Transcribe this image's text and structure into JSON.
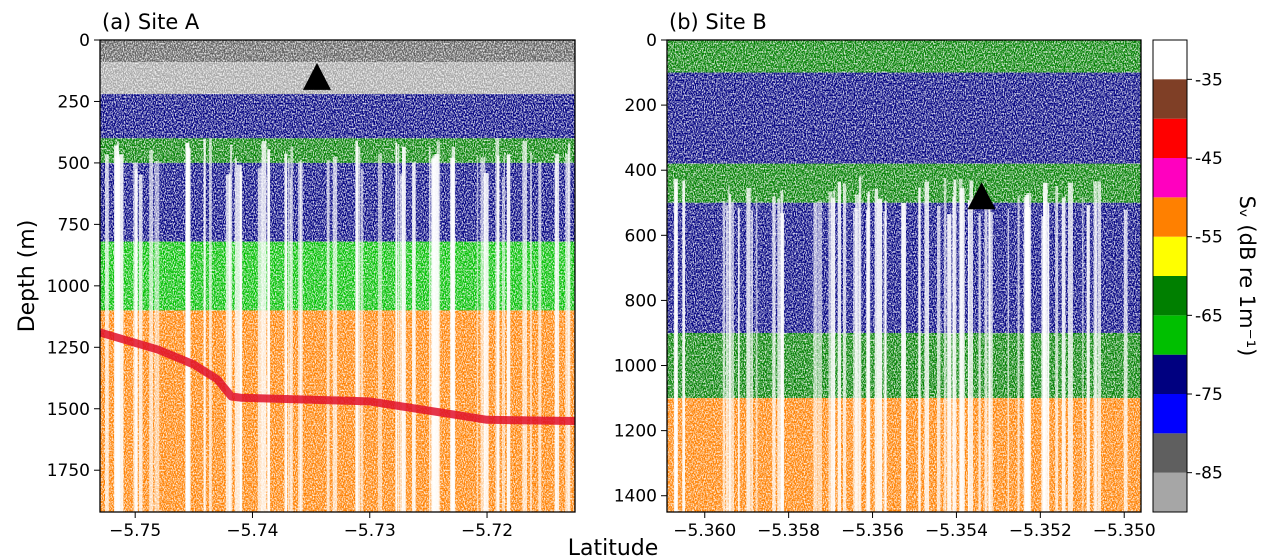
{
  "chart_data": [
    {
      "type": "heatmap",
      "panel": "(a) Site A",
      "title": "(a) Site A",
      "ylabel": "Depth (m)",
      "xlabel": "Latitude",
      "y_inverted": true,
      "xlim": [
        -5.753,
        -5.7125
      ],
      "ylim": [
        0,
        1920
      ],
      "xticks": [
        -5.75,
        -5.74,
        -5.73,
        -5.72
      ],
      "xtick_labels": [
        "−5.75",
        "−5.74",
        "−5.73",
        "−5.72"
      ],
      "yticks": [
        0,
        250,
        500,
        750,
        1000,
        1250,
        1500,
        1750
      ],
      "ytick_labels": [
        "0",
        "250",
        "500",
        "750",
        "1000",
        "1250",
        "1500",
        "1750"
      ],
      "marker": {
        "shape": "triangle",
        "lat": -5.7345,
        "depth": 150
      },
      "bottom_echo": {
        "lat": [
          -5.753,
          -5.748,
          -5.745,
          -5.743,
          -5.7418,
          -5.741,
          -5.73,
          -5.722,
          -5.72,
          -5.7125
        ],
        "depth": [
          1190,
          1260,
          1320,
          1380,
          1450,
          1455,
          1470,
          1530,
          1545,
          1550
        ]
      },
      "layers": [
        {
          "depth": [
            0,
            90
          ],
          "sv": -82
        },
        {
          "depth": [
            90,
            220
          ],
          "sv": -88
        },
        {
          "depth": [
            220,
            400
          ],
          "sv": -72
        },
        {
          "depth": [
            400,
            500
          ],
          "sv": -65
        },
        {
          "depth": [
            500,
            820
          ],
          "sv": -72
        },
        {
          "depth": [
            820,
            1100
          ],
          "sv": -66
        },
        {
          "depth": [
            1100,
            1920
          ],
          "sv": -55
        }
      ]
    },
    {
      "type": "heatmap",
      "panel": "(b) Site B",
      "title": "(b) Site B",
      "ylabel": "",
      "xlabel": "Latitude",
      "y_inverted": true,
      "xlim": [
        -5.3609,
        -5.3496
      ],
      "ylim": [
        0,
        1450
      ],
      "xticks": [
        -5.36,
        -5.358,
        -5.356,
        -5.354,
        -5.352,
        -5.35
      ],
      "xtick_labels": [
        "−5.360",
        "−5.358",
        "−5.356",
        "−5.354",
        "−5.352",
        "−5.350"
      ],
      "yticks": [
        0,
        200,
        400,
        600,
        800,
        1000,
        1200,
        1400
      ],
      "ytick_labels": [
        "0",
        "200",
        "400",
        "600",
        "800",
        "1000",
        "1200",
        "1400"
      ],
      "marker": {
        "shape": "triangle",
        "lat": -5.3534,
        "depth": 480
      },
      "layers": [
        {
          "depth": [
            0,
            100
          ],
          "sv": -65
        },
        {
          "depth": [
            100,
            380
          ],
          "sv": -75
        },
        {
          "depth": [
            380,
            500
          ],
          "sv": -65
        },
        {
          "depth": [
            500,
            900
          ],
          "sv": -72
        },
        {
          "depth": [
            900,
            1100
          ],
          "sv": -65
        },
        {
          "depth": [
            1100,
            1450
          ],
          "sv": -55
        }
      ]
    }
  ],
  "colorbar": {
    "label": "Sᵥ (dB re 1m⁻¹)",
    "min": -90,
    "max": -30,
    "ticks": [
      -35,
      -45,
      -55,
      -65,
      -75,
      -85
    ],
    "tick_labels": [
      "-35",
      "-45",
      "-55",
      "-65",
      "-75",
      "-85"
    ],
    "bins": [
      {
        "from": -90,
        "to": -85,
        "color": "#a6a6a6"
      },
      {
        "from": -85,
        "to": -80,
        "color": "#5f5f5f"
      },
      {
        "from": -80,
        "to": -75,
        "color": "#0000ff"
      },
      {
        "from": -75,
        "to": -70,
        "color": "#000080"
      },
      {
        "from": -70,
        "to": -65,
        "color": "#00bf00"
      },
      {
        "from": -65,
        "to": -60,
        "color": "#007f00"
      },
      {
        "from": -60,
        "to": -55,
        "color": "#ffff00"
      },
      {
        "from": -55,
        "to": -50,
        "color": "#ff8000"
      },
      {
        "from": -50,
        "to": -45,
        "color": "#ff00bf"
      },
      {
        "from": -45,
        "to": -40,
        "color": "#ff0000"
      },
      {
        "from": -40,
        "to": -35,
        "color": "#7f3f26"
      }
    ]
  }
}
